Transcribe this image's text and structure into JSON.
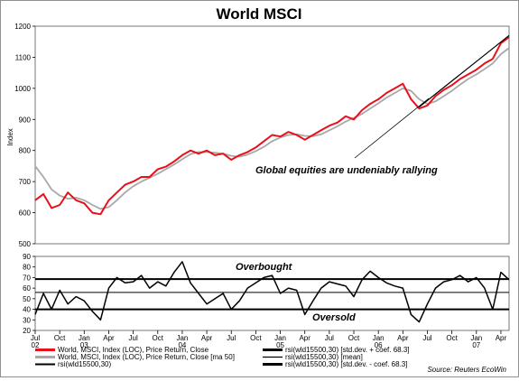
{
  "chart_data": [
    {
      "type": "line",
      "title": "World MSCI",
      "ylabel": "Index",
      "ylim": [
        500,
        1200
      ],
      "yticks": [
        500,
        600,
        700,
        800,
        900,
        1000,
        1100,
        1200
      ],
      "grid": false,
      "x_range": [
        "2002-07",
        "2007-05"
      ],
      "x_month_ticks": [
        "Jul",
        "Oct",
        "Jan",
        "Apr",
        "Jul",
        "Oct",
        "Jan",
        "Apr",
        "Jul",
        "Oct",
        "Jan",
        "Apr",
        "Jul",
        "Oct",
        "Jan",
        "Apr",
        "Jul",
        "Oct",
        "Jan",
        "Apr"
      ],
      "x_year_labels": [
        "02",
        "03",
        "04",
        "05",
        "06",
        "07"
      ],
      "series": [
        {
          "name": "World, MSCI, Index (LOC), Price Return, Close",
          "color": "#e8101a",
          "x": [
            "2002-07",
            "2002-08",
            "2002-09",
            "2002-10",
            "2002-11",
            "2002-12",
            "2003-01",
            "2003-02",
            "2003-03",
            "2003-04",
            "2003-05",
            "2003-06",
            "2003-07",
            "2003-08",
            "2003-09",
            "2003-10",
            "2003-11",
            "2003-12",
            "2004-01",
            "2004-02",
            "2004-03",
            "2004-04",
            "2004-05",
            "2004-06",
            "2004-07",
            "2004-08",
            "2004-09",
            "2004-10",
            "2004-11",
            "2004-12",
            "2005-01",
            "2005-02",
            "2005-03",
            "2005-04",
            "2005-05",
            "2005-06",
            "2005-07",
            "2005-08",
            "2005-09",
            "2005-10",
            "2005-11",
            "2005-12",
            "2006-01",
            "2006-02",
            "2006-03",
            "2006-04",
            "2006-05",
            "2006-06",
            "2006-07",
            "2006-08",
            "2006-09",
            "2006-10",
            "2006-11",
            "2006-12",
            "2007-01",
            "2007-02",
            "2007-03",
            "2007-04",
            "2007-05"
          ],
          "values": [
            640,
            660,
            615,
            625,
            665,
            640,
            630,
            600,
            595,
            640,
            665,
            690,
            700,
            715,
            715,
            740,
            748,
            765,
            785,
            800,
            790,
            800,
            785,
            790,
            770,
            785,
            795,
            810,
            830,
            850,
            845,
            860,
            850,
            835,
            850,
            865,
            880,
            890,
            910,
            900,
            930,
            950,
            965,
            985,
            1000,
            1015,
            965,
            935,
            945,
            975,
            995,
            1010,
            1030,
            1045,
            1060,
            1080,
            1095,
            1145,
            1165
          ]
        },
        {
          "name": "World, MSCI, Index (LOC), Price Return, Close [ma 50]",
          "color": "#a8a8a8",
          "x": [
            "2002-07",
            "2002-08",
            "2002-09",
            "2002-10",
            "2002-11",
            "2002-12",
            "2003-01",
            "2003-02",
            "2003-03",
            "2003-04",
            "2003-05",
            "2003-06",
            "2003-07",
            "2003-08",
            "2003-09",
            "2003-10",
            "2003-11",
            "2003-12",
            "2004-01",
            "2004-02",
            "2004-03",
            "2004-04",
            "2004-05",
            "2004-06",
            "2004-07",
            "2004-08",
            "2004-09",
            "2004-10",
            "2004-11",
            "2004-12",
            "2005-01",
            "2005-02",
            "2005-03",
            "2005-04",
            "2005-05",
            "2005-06",
            "2005-07",
            "2005-08",
            "2005-09",
            "2005-10",
            "2005-11",
            "2005-12",
            "2006-01",
            "2006-02",
            "2006-03",
            "2006-04",
            "2006-05",
            "2006-06",
            "2006-07",
            "2006-08",
            "2006-09",
            "2006-10",
            "2006-11",
            "2006-12",
            "2007-01",
            "2007-02",
            "2007-03",
            "2007-04",
            "2007-05"
          ],
          "values": [
            750,
            715,
            675,
            655,
            645,
            648,
            640,
            625,
            612,
            618,
            640,
            665,
            685,
            700,
            712,
            725,
            740,
            755,
            772,
            788,
            795,
            795,
            793,
            790,
            783,
            780,
            787,
            798,
            812,
            830,
            842,
            850,
            852,
            847,
            846,
            852,
            865,
            878,
            893,
            905,
            918,
            935,
            952,
            970,
            985,
            1000,
            992,
            965,
            950,
            958,
            975,
            992,
            1012,
            1030,
            1045,
            1062,
            1080,
            1110,
            1130
          ]
        }
      ],
      "annotations": [
        {
          "text": "Global equities are undeniably rallying"
        }
      ],
      "trendline": {
        "x": [
          "2006-06",
          "2007-05"
        ],
        "values": [
          940,
          1170
        ]
      },
      "legend_entries": [
        "World, MSCI, Index (LOC), Price Return, Close",
        "World, MSCI, Index (LOC), Price Return, Close [ma 50]",
        "rsi(wld15500,30)",
        "rsi(wld15500,30) [std.dev. + coef. 68.3]",
        "rsi(wld15500,30) [mean]",
        "rsi(wld15500,30) [std.dev. - coef. 68.3]"
      ],
      "legend_placement": "bottom",
      "source": "Source: Reuters EcoWin"
    },
    {
      "type": "line",
      "ylim": [
        20,
        90
      ],
      "yticks": [
        20,
        30,
        40,
        50,
        60,
        70,
        80,
        90
      ],
      "grid": false,
      "series": [
        {
          "name": "rsi(wld15500,30)",
          "color": "#000000",
          "x": [
            "2002-07",
            "2002-08",
            "2002-09",
            "2002-10",
            "2002-11",
            "2002-12",
            "2003-01",
            "2003-02",
            "2003-03",
            "2003-04",
            "2003-05",
            "2003-06",
            "2003-07",
            "2003-08",
            "2003-09",
            "2003-10",
            "2003-11",
            "2003-12",
            "2004-01",
            "2004-02",
            "2004-03",
            "2004-04",
            "2004-05",
            "2004-06",
            "2004-07",
            "2004-08",
            "2004-09",
            "2004-10",
            "2004-11",
            "2004-12",
            "2005-01",
            "2005-02",
            "2005-03",
            "2005-04",
            "2005-05",
            "2005-06",
            "2005-07",
            "2005-08",
            "2005-09",
            "2005-10",
            "2005-11",
            "2005-12",
            "2006-01",
            "2006-02",
            "2006-03",
            "2006-04",
            "2006-05",
            "2006-06",
            "2006-07",
            "2006-08",
            "2006-09",
            "2006-10",
            "2006-11",
            "2006-12",
            "2007-01",
            "2007-02",
            "2007-03",
            "2007-04",
            "2007-05"
          ],
          "values": [
            35,
            55,
            40,
            58,
            45,
            52,
            48,
            38,
            30,
            60,
            70,
            65,
            66,
            72,
            60,
            66,
            62,
            75,
            85,
            65,
            55,
            45,
            50,
            55,
            40,
            48,
            60,
            65,
            70,
            72,
            55,
            60,
            58,
            35,
            48,
            60,
            66,
            64,
            62,
            52,
            68,
            76,
            70,
            65,
            62,
            60,
            35,
            28,
            45,
            60,
            66,
            68,
            72,
            66,
            70,
            60,
            40,
            75,
            68
          ]
        }
      ],
      "reference_lines": [
        {
          "name": "rsi(wld15500,30) [std.dev. + coef. 68.3]",
          "value": 68.5
        },
        {
          "name": "rsi(wld15500,30) [mean]",
          "value": 56
        },
        {
          "name": "rsi(wld15500,30) [std.dev. - coef. 68.3]",
          "value": 40
        }
      ],
      "annotations": [
        {
          "text": "Overbought"
        },
        {
          "text": "Oversold"
        }
      ]
    }
  ]
}
